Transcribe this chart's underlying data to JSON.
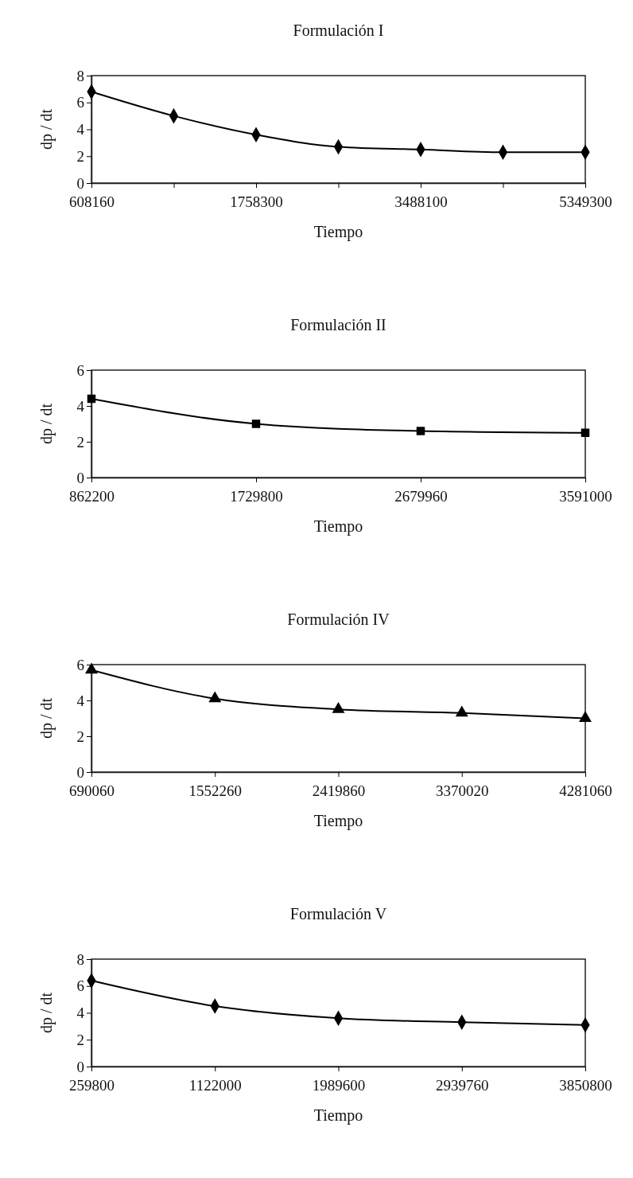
{
  "chart_data": [
    {
      "type": "line",
      "title": "Formulación I",
      "xlabel": "Tiempo",
      "ylabel": "dp / dt",
      "categories": [
        "608160",
        null,
        "1758300",
        null,
        "3488100",
        null,
        "5349300"
      ],
      "series": [
        {
          "color": "#000000",
          "values": [
            6.8,
            5.0,
            3.6,
            2.7,
            2.5,
            2.3,
            2.3
          ]
        }
      ],
      "ylim": [
        0,
        8
      ],
      "yticks": [
        0,
        2,
        4,
        6,
        8
      ],
      "marker": "diamond"
    },
    {
      "type": "line",
      "title": "Formulación II",
      "xlabel": "Tiempo",
      "ylabel": "dp / dt",
      "categories": [
        "862200",
        "1729800",
        "2679960",
        "3591000"
      ],
      "series": [
        {
          "color": "#000000",
          "values": [
            4.4,
            3.0,
            2.6,
            2.5
          ]
        }
      ],
      "ylim": [
        0,
        6
      ],
      "yticks": [
        0,
        2,
        4,
        6
      ],
      "marker": "square"
    },
    {
      "type": "line",
      "title": "Formulación IV",
      "xlabel": "Tiempo",
      "ylabel": "dp / dt",
      "categories": [
        "690060",
        "1552260",
        "2419860",
        "3370020",
        "4281060"
      ],
      "series": [
        {
          "color": "#000000",
          "values": [
            5.7,
            4.1,
            3.5,
            3.3,
            3.0
          ]
        }
      ],
      "ylim": [
        0,
        6
      ],
      "yticks": [
        0,
        2,
        4,
        6
      ],
      "marker": "triangle"
    },
    {
      "type": "line",
      "title": "Formulación V",
      "xlabel": "Tiempo",
      "ylabel": "dp / dt",
      "categories": [
        "259800",
        "1122000",
        "1989600",
        "2939760",
        "3850800"
      ],
      "series": [
        {
          "color": "#000000",
          "values": [
            6.4,
            4.5,
            3.6,
            3.3,
            3.1
          ]
        }
      ],
      "ylim": [
        0,
        8
      ],
      "yticks": [
        0,
        2,
        4,
        6,
        8
      ],
      "marker": "diamond"
    }
  ]
}
